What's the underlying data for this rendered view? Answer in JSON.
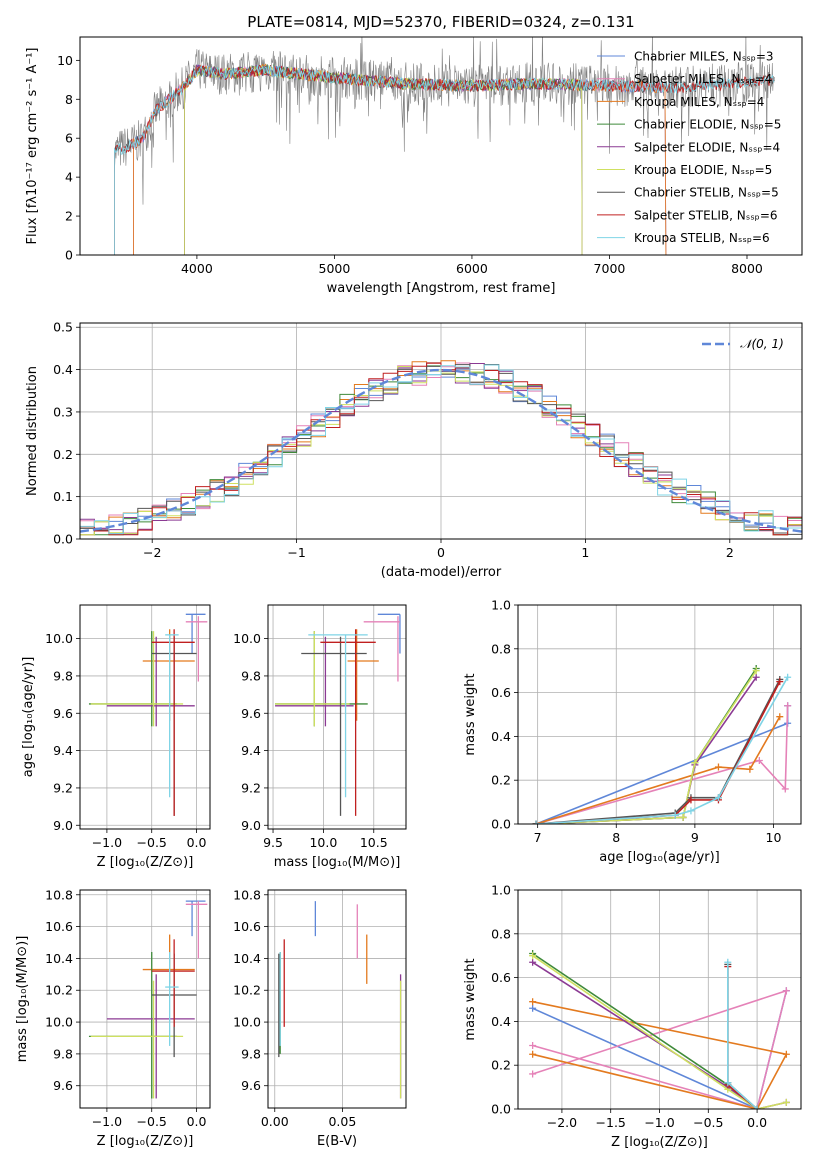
{
  "colors": {
    "chabrier_miles": "#5f87d8",
    "salpeter_miles": "#e582b8",
    "kroupa_miles": "#e37a1f",
    "chabrier_elodie": "#3f8a3a",
    "salpeter_elodie": "#8b3a93",
    "kroupa_elodie": "#cfe060",
    "chabrier_stelib": "#555555",
    "salpeter_stelib": "#c02020",
    "kroupa_stelib": "#7fd4e6",
    "data_gray": "#808080",
    "normal_curve": "#5f87d8"
  },
  "chart_data": [
    {
      "id": "spectrum",
      "type": "line",
      "title": "PLATE=0814, MJD=52370, FIBERID=0324, z=0.131",
      "xlabel": "wavelength [Angstrom, rest frame]",
      "ylabel": "Flux [fλ10⁻¹⁷ erg cm⁻² s⁻¹ A⁻¹]",
      "xlim": [
        3150,
        8400
      ],
      "ylim": [
        0,
        11.2
      ],
      "xticks": [
        "4000",
        "5000",
        "6000",
        "7000",
        "8000"
      ],
      "yticks": [
        "0",
        "2",
        "4",
        "6",
        "8",
        "10"
      ],
      "continuum": {
        "x": [
          3400,
          3600,
          3700,
          3800,
          3900,
          4000,
          4200,
          4500,
          5000,
          5500,
          6000,
          6500,
          7000,
          7500,
          8000,
          8200
        ],
        "y": [
          5.3,
          5.9,
          7.4,
          8.0,
          8.6,
          9.5,
          9.3,
          9.5,
          9.1,
          8.8,
          8.7,
          8.8,
          8.7,
          8.6,
          8.9,
          9.0
        ]
      },
      "legend": [
        "Chabrier MILES, Nₛₛₚ=3",
        "Salpeter MILES, Nₛₛₚ=4",
        "Kroupa MILES, Nₛₛₚ=4",
        "Chabrier ELODIE, Nₛₛₚ=5",
        "Salpeter ELODIE, Nₛₛₚ=4",
        "Kroupa ELODIE, Nₛₛₚ=5",
        "Chabrier STELIB, Nₛₛₚ=5",
        "Salpeter STELIB, Nₛₛₚ=6",
        "Kroupa STELIB, Nₛₛₚ=6"
      ]
    },
    {
      "id": "residuals",
      "type": "line",
      "xlabel": "(data-model)/error",
      "ylabel": "Normed distribution",
      "xlim": [
        -2.5,
        2.5
      ],
      "ylim": [
        0,
        0.51
      ],
      "xticks": [
        "−2",
        "−1",
        "0",
        "1",
        "2"
      ],
      "yticks": [
        "0.0",
        "0.1",
        "0.2",
        "0.3",
        "0.4",
        "0.5"
      ],
      "grid": true,
      "legend": [
        "𝒩(0, 1)"
      ],
      "bin_width": 0.1
    },
    {
      "id": "age_vs_Z",
      "type": "scatter",
      "xlabel": "Z [log₁₀(Z/Z⊙)]",
      "ylabel": "age  [log₁₀(age/yr)]",
      "xlim": [
        -1.3,
        0.15
      ],
      "ylim": [
        8.98,
        10.18
      ],
      "xticks": [
        "−1.0",
        "−0.5",
        "0.0"
      ],
      "yticks": [
        "9.0",
        "9.2",
        "9.4",
        "9.6",
        "9.8",
        "10.0"
      ],
      "grid": true
    },
    {
      "id": "age_vs_mass",
      "type": "scatter",
      "xlabel": "mass [log₁₀(M/M⊙)]",
      "xlim": [
        9.45,
        10.82
      ],
      "ylim": [
        8.98,
        10.18
      ],
      "xticks": [
        "9.5",
        "10.0",
        "10.5"
      ],
      "yticks": [
        "9.0",
        "9.2",
        "9.4",
        "9.6",
        "9.8",
        "10.0"
      ],
      "grid": true
    },
    {
      "id": "mass_weight_vs_age",
      "type": "line",
      "xlabel": "age  [log₁₀(age/yr)]",
      "ylabel": "mass weight",
      "xlim": [
        6.75,
        10.35
      ],
      "ylim": [
        0,
        1.0
      ],
      "xticks": [
        "7",
        "8",
        "9",
        "10"
      ],
      "yticks": [
        "0.0",
        "0.2",
        "0.4",
        "0.6",
        "0.8",
        "1.0"
      ],
      "grid": true
    },
    {
      "id": "mass_vs_Z",
      "type": "scatter",
      "xlabel": "Z [log₁₀(Z/Z⊙)]",
      "ylabel": "mass [log₁₀(M/M⊙)]",
      "xlim": [
        -1.3,
        0.15
      ],
      "ylim": [
        9.46,
        10.83
      ],
      "xticks": [
        "−1.0",
        "−0.5",
        "0.0"
      ],
      "yticks": [
        "9.6",
        "9.8",
        "10.0",
        "10.2",
        "10.4",
        "10.6",
        "10.8"
      ],
      "grid": true
    },
    {
      "id": "mass_vs_ebv",
      "type": "scatter",
      "xlabel": "E(B-V)",
      "xlim": [
        -0.005,
        0.097
      ],
      "ylim": [
        9.46,
        10.83
      ],
      "xticks": [
        "0.00",
        "0.05"
      ],
      "yticks": [
        "9.6",
        "9.8",
        "10.0",
        "10.2",
        "10.4",
        "10.6",
        "10.8"
      ],
      "grid": true,
      "points": [
        {
          "x": 0.03,
          "lo": 10.54,
          "hi": 10.76,
          "c": "chabrier_miles"
        },
        {
          "x": 0.061,
          "lo": 10.4,
          "hi": 10.74,
          "c": "salpeter_miles"
        },
        {
          "x": 0.068,
          "lo": 10.24,
          "hi": 10.55,
          "c": "kroupa_miles"
        },
        {
          "x": 0.004,
          "lo": 9.8,
          "hi": 10.44,
          "c": "chabrier_elodie"
        },
        {
          "x": 0.093,
          "lo": 9.52,
          "hi": 10.3,
          "c": "salpeter_elodie"
        },
        {
          "x": 0.093,
          "lo": 9.52,
          "hi": 10.26,
          "c": "kroupa_elodie"
        },
        {
          "x": 0.003,
          "lo": 9.78,
          "hi": 10.43,
          "c": "chabrier_stelib"
        },
        {
          "x": 0.007,
          "lo": 9.97,
          "hi": 10.52,
          "c": "salpeter_stelib"
        },
        {
          "x": 0.004,
          "lo": 9.85,
          "hi": 10.44,
          "c": "kroupa_stelib"
        }
      ]
    },
    {
      "id": "mass_weight_vs_Z",
      "type": "line",
      "xlabel": "Z [log₁₀(Z/Z⊙)]",
      "ylabel": "mass weight",
      "xlim": [
        -2.45,
        0.45
      ],
      "ylim": [
        0,
        1.0
      ],
      "xticks": [
        "−2.0",
        "−1.5",
        "−1.0",
        "−0.5",
        "0.0"
      ],
      "yticks": [
        "0.0",
        "0.2",
        "0.4",
        "0.6",
        "0.8",
        "1.0"
      ],
      "grid": true
    }
  ],
  "ssp_fits": [
    {
      "c": "chabrier_miles",
      "Z": -0.05,
      "Zlo": -0.12,
      "Zhi": 0.1,
      "age": 10.13,
      "agelo": 9.92,
      "agehi": 10.13,
      "mass": 10.76,
      "masslo": 10.54,
      "masshi": 10.76,
      "w_age": [
        [
          6.98,
          0.0
        ],
        [
          10.18,
          0.46
        ],
        [
          10.18,
          0.54
        ]
      ],
      "w_Z": [
        [
          -2.3,
          0.46
        ],
        [
          0.0,
          0.0
        ],
        [
          0.3,
          0.54
        ]
      ]
    },
    {
      "c": "salpeter_miles",
      "Z": 0.02,
      "Zlo": -0.12,
      "Zhi": 0.12,
      "age": 10.09,
      "agelo": 9.77,
      "agehi": 10.12,
      "mass": 10.74,
      "masslo": 10.4,
      "masshi": 10.76,
      "w_age": [
        [
          6.98,
          0.0
        ],
        [
          9.82,
          0.29
        ],
        [
          10.15,
          0.16
        ],
        [
          10.18,
          0.54
        ]
      ],
      "w_Z": [
        [
          -2.3,
          0.29
        ],
        [
          0.0,
          0.0
        ],
        [
          0.3,
          0.54
        ],
        [
          -2.3,
          0.16
        ]
      ]
    },
    {
      "c": "kroupa_miles",
      "Z": -0.3,
      "Zlo": -0.6,
      "Zhi": -0.02,
      "age": 9.88,
      "agelo": 9.56,
      "agehi": 10.05,
      "mass": 10.33,
      "masslo": 10.24,
      "masshi": 10.55,
      "w_age": [
        [
          6.98,
          0.0
        ],
        [
          9.3,
          0.26
        ],
        [
          9.7,
          0.25
        ],
        [
          10.08,
          0.49
        ]
      ],
      "w_Z": [
        [
          -2.3,
          0.25
        ],
        [
          0.0,
          0.0
        ],
        [
          0.3,
          0.25
        ],
        [
          -2.3,
          0.49
        ]
      ]
    },
    {
      "c": "chabrier_elodie",
      "Z": -0.5,
      "Zlo": -1.2,
      "Zhi": -0.22,
      "age": 9.65,
      "agelo": 9.53,
      "agehi": 10.04,
      "mass": 9.91,
      "masslo": 9.52,
      "masshi": 10.44,
      "w_age": [
        [
          6.98,
          0.0
        ],
        [
          8.85,
          0.03
        ],
        [
          9.0,
          0.28
        ],
        [
          9.78,
          0.71
        ]
      ],
      "w_Z": [
        [
          -2.3,
          0.71
        ],
        [
          -0.3,
          0.11
        ],
        [
          0.0,
          0.0
        ]
      ]
    },
    {
      "c": "salpeter_elodie",
      "Z": -0.45,
      "Zlo": -1.0,
      "Zhi": -0.02,
      "age": 9.64,
      "agelo": 9.53,
      "agehi": 10.01,
      "mass": 10.02,
      "masslo": 9.52,
      "masshi": 10.3,
      "w_age": [
        [
          6.98,
          0.0
        ],
        [
          8.85,
          0.03
        ],
        [
          9.0,
          0.27
        ],
        [
          9.78,
          0.67
        ]
      ],
      "w_Z": [
        [
          -2.3,
          0.67
        ],
        [
          -0.3,
          0.1
        ],
        [
          0.0,
          0.0
        ],
        [
          0.3,
          0.03
        ]
      ]
    },
    {
      "c": "kroupa_elodie",
      "Z": -0.48,
      "Zlo": -1.18,
      "Zhi": -0.15,
      "age": 9.65,
      "agelo": 9.53,
      "agehi": 10.04,
      "mass": 9.91,
      "masslo": 9.52,
      "masshi": 10.26,
      "w_age": [
        [
          6.98,
          0.0
        ],
        [
          8.85,
          0.03
        ],
        [
          9.0,
          0.28
        ],
        [
          9.78,
          0.7
        ]
      ],
      "w_Z": [
        [
          -2.3,
          0.7
        ],
        [
          -0.3,
          0.09
        ],
        [
          0.0,
          0.0
        ],
        [
          0.3,
          0.03
        ]
      ]
    },
    {
      "c": "chabrier_stelib",
      "Z": -0.25,
      "Zlo": -0.5,
      "Zhi": 0.0,
      "age": 9.92,
      "agelo": 9.05,
      "agehi": 10.01,
      "mass": 10.17,
      "masslo": 9.78,
      "masshi": 10.43,
      "w_age": [
        [
          6.98,
          0.0
        ],
        [
          8.75,
          0.05
        ],
        [
          8.95,
          0.12
        ],
        [
          9.3,
          0.12
        ],
        [
          10.08,
          0.66
        ]
      ],
      "w_Z": [
        [
          -0.3,
          0.66
        ],
        [
          -0.3,
          0.12
        ],
        [
          0.0,
          0.0
        ]
      ]
    },
    {
      "c": "salpeter_stelib",
      "Z": -0.25,
      "Zlo": -0.5,
      "Zhi": -0.02,
      "age": 9.98,
      "agelo": 9.05,
      "agehi": 10.05,
      "mass": 10.32,
      "masslo": 9.97,
      "masshi": 10.52,
      "w_age": [
        [
          6.98,
          0.0
        ],
        [
          8.75,
          0.04
        ],
        [
          8.95,
          0.11
        ],
        [
          9.3,
          0.11
        ],
        [
          10.08,
          0.65
        ]
      ],
      "w_Z": [
        [
          -0.3,
          0.65
        ],
        [
          -0.3,
          0.11
        ],
        [
          0.0,
          0.0
        ]
      ]
    },
    {
      "c": "kroupa_stelib",
      "Z": -0.3,
      "Zlo": -0.35,
      "Zhi": -0.2,
      "age": 10.02,
      "agelo": 9.15,
      "agehi": 10.02,
      "mass": 10.22,
      "masslo": 9.85,
      "masshi": 10.44,
      "w_age": [
        [
          6.98,
          0.0
        ],
        [
          8.75,
          0.04
        ],
        [
          8.95,
          0.06
        ],
        [
          9.3,
          0.12
        ],
        [
          10.18,
          0.67
        ]
      ],
      "w_Z": [
        [
          -0.3,
          0.67
        ],
        [
          -0.3,
          0.12
        ],
        [
          0.0,
          0.0
        ]
      ]
    }
  ]
}
